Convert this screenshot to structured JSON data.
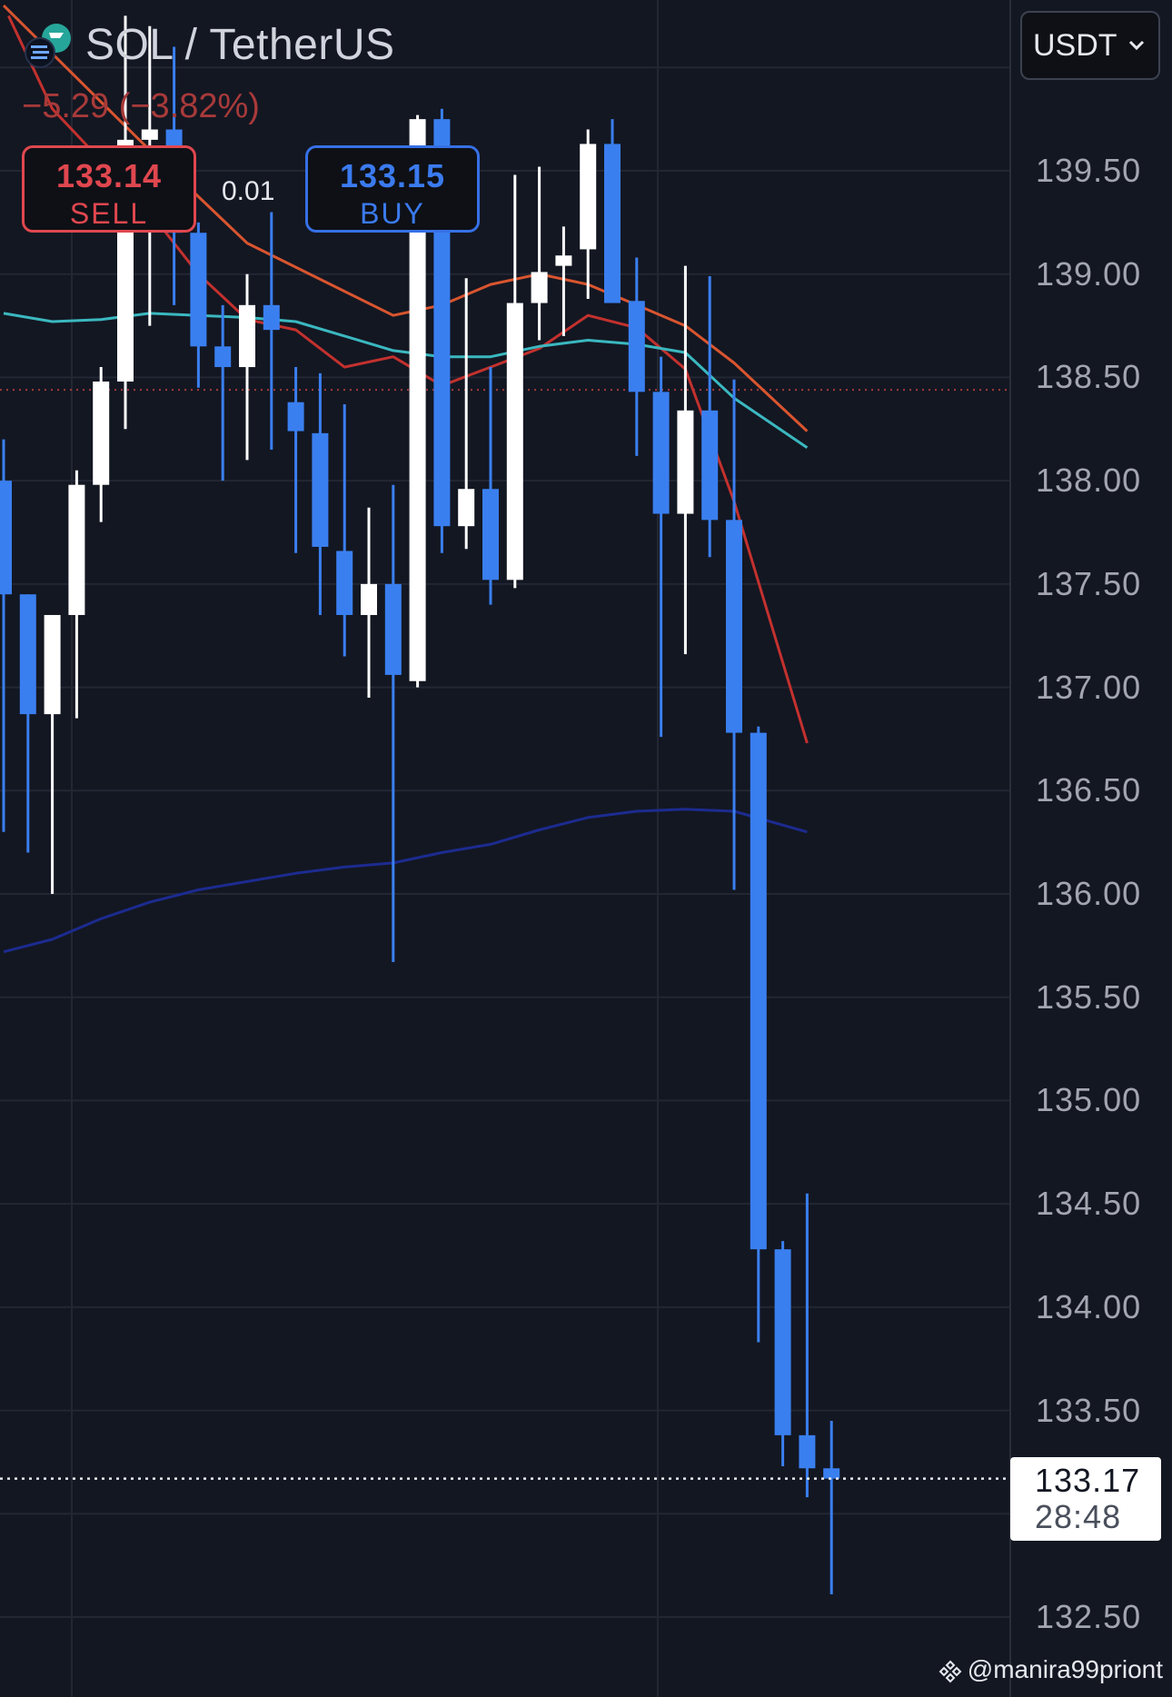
{
  "header": {
    "title": "SOL / TetherUS",
    "change": "−5.29 (−3.82%)"
  },
  "trade": {
    "sell_price": "133.14",
    "sell_label": "SELL",
    "buy_price": "133.15",
    "buy_label": "BUY",
    "spread": "0.01"
  },
  "currency_select": {
    "value": "USDT"
  },
  "last_price": {
    "value": "133.17",
    "countdown": "28:48"
  },
  "watermark": "@manira99priont",
  "colors": {
    "background": "#131722",
    "grid": "#232733",
    "up_candle": "#ffffff",
    "down_candle": "#3a7ff0",
    "ma_red": "#c3312e",
    "ma_orange": "#d9552f",
    "ma_teal": "#3bb8c0",
    "ma_navy": "#1c2b8f"
  },
  "chart_data": {
    "type": "candlestick",
    "title": "SOL / TetherUS",
    "ylim": [
      132.25,
      140.25
    ],
    "y_ticks": [
      "139.50",
      "139.00",
      "138.50",
      "138.00",
      "137.50",
      "137.00",
      "136.50",
      "136.00",
      "135.50",
      "135.00",
      "134.50",
      "134.00",
      "133.50",
      "132.50"
    ],
    "grid": true,
    "last_price": 133.17,
    "candles": [
      {
        "o": 138.0,
        "h": 138.2,
        "l": 136.3,
        "c": 137.45
      },
      {
        "o": 137.45,
        "h": 137.45,
        "l": 136.2,
        "c": 136.87
      },
      {
        "o": 136.87,
        "h": 137.35,
        "l": 136.0,
        "c": 137.35
      },
      {
        "o": 137.35,
        "h": 138.05,
        "l": 136.85,
        "c": 137.98
      },
      {
        "o": 137.98,
        "h": 138.55,
        "l": 137.8,
        "c": 138.48
      },
      {
        "o": 138.48,
        "h": 140.25,
        "l": 138.25,
        "c": 139.65
      },
      {
        "o": 139.65,
        "h": 140.2,
        "l": 138.75,
        "c": 139.7
      },
      {
        "o": 139.7,
        "h": 140.1,
        "l": 138.85,
        "c": 139.2
      },
      {
        "o": 139.2,
        "h": 139.25,
        "l": 138.45,
        "c": 138.65
      },
      {
        "o": 138.65,
        "h": 138.85,
        "l": 138.0,
        "c": 138.55
      },
      {
        "o": 138.55,
        "h": 139.0,
        "l": 138.1,
        "c": 138.85
      },
      {
        "o": 138.85,
        "h": 139.3,
        "l": 138.15,
        "c": 138.73
      },
      {
        "o": 138.38,
        "h": 138.55,
        "l": 137.65,
        "c": 138.24
      },
      {
        "o": 138.23,
        "h": 138.52,
        "l": 137.35,
        "c": 137.68
      },
      {
        "o": 137.66,
        "h": 138.37,
        "l": 137.15,
        "c": 137.35
      },
      {
        "o": 137.35,
        "h": 137.87,
        "l": 136.95,
        "c": 137.5
      },
      {
        "o": 137.5,
        "h": 137.98,
        "l": 135.67,
        "c": 137.06
      },
      {
        "o": 137.03,
        "h": 139.77,
        "l": 137.0,
        "c": 139.75
      },
      {
        "o": 139.75,
        "h": 139.8,
        "l": 137.65,
        "c": 137.78
      },
      {
        "o": 137.78,
        "h": 138.98,
        "l": 137.67,
        "c": 137.96
      },
      {
        "o": 137.96,
        "h": 138.55,
        "l": 137.4,
        "c": 137.52
      },
      {
        "o": 137.52,
        "h": 139.48,
        "l": 137.48,
        "c": 138.86
      },
      {
        "o": 138.86,
        "h": 139.52,
        "l": 138.68,
        "c": 139.01
      },
      {
        "o": 139.04,
        "h": 139.23,
        "l": 138.7,
        "c": 139.09
      },
      {
        "o": 139.12,
        "h": 139.7,
        "l": 138.88,
        "c": 139.63
      },
      {
        "o": 139.63,
        "h": 139.75,
        "l": 138.93,
        "c": 138.86
      },
      {
        "o": 138.87,
        "h": 139.08,
        "l": 138.12,
        "c": 138.43
      },
      {
        "o": 138.43,
        "h": 138.6,
        "l": 136.76,
        "c": 137.84
      },
      {
        "o": 137.84,
        "h": 139.04,
        "l": 137.16,
        "c": 138.34
      },
      {
        "o": 138.34,
        "h": 138.99,
        "l": 137.63,
        "c": 137.81
      },
      {
        "o": 137.81,
        "h": 138.49,
        "l": 136.02,
        "c": 136.78
      },
      {
        "o": 136.78,
        "h": 136.81,
        "l": 133.83,
        "c": 134.28
      },
      {
        "o": 134.28,
        "h": 134.32,
        "l": 133.23,
        "c": 133.38
      },
      {
        "o": 133.38,
        "h": 134.55,
        "l": 133.08,
        "c": 133.22
      },
      {
        "o": 133.22,
        "h": 133.45,
        "l": 132.61,
        "c": 133.17
      }
    ],
    "moving_averages": [
      {
        "color": "#d9552f",
        "points": [
          [
            0,
            140.3
          ],
          [
            6,
            139.6
          ],
          [
            10,
            139.15
          ],
          [
            16,
            138.8
          ],
          [
            18,
            138.85
          ],
          [
            20,
            138.95
          ],
          [
            22,
            139.0
          ],
          [
            24,
            138.95
          ],
          [
            26,
            138.85
          ],
          [
            28,
            138.75
          ],
          [
            30,
            138.57
          ],
          [
            33,
            138.24
          ]
        ]
      },
      {
        "color": "#c3312e",
        "points": [
          [
            0.2,
            140.25
          ],
          [
            2,
            139.8
          ],
          [
            4,
            139.55
          ],
          [
            6,
            139.3
          ],
          [
            8,
            139.0
          ],
          [
            10,
            138.78
          ],
          [
            12,
            138.73
          ],
          [
            14,
            138.55
          ],
          [
            16,
            138.6
          ],
          [
            18,
            138.46
          ],
          [
            20,
            138.55
          ],
          [
            22,
            138.64
          ],
          [
            24,
            138.8
          ],
          [
            26,
            138.74
          ],
          [
            28,
            138.54
          ],
          [
            30,
            137.9
          ],
          [
            33,
            136.73
          ]
        ]
      },
      {
        "color": "#3bb8c0",
        "points": [
          [
            0,
            138.81
          ],
          [
            2,
            138.77
          ],
          [
            4,
            138.78
          ],
          [
            6,
            138.81
          ],
          [
            8,
            138.8
          ],
          [
            10,
            138.79
          ],
          [
            12,
            138.77
          ],
          [
            14,
            138.7
          ],
          [
            16,
            138.63
          ],
          [
            18,
            138.6
          ],
          [
            20,
            138.6
          ],
          [
            22,
            138.65
          ],
          [
            24,
            138.68
          ],
          [
            26,
            138.66
          ],
          [
            28,
            138.62
          ],
          [
            30,
            138.4
          ],
          [
            33,
            138.16
          ]
        ]
      },
      {
        "color": "#1c2b8f",
        "points": [
          [
            0,
            135.72
          ],
          [
            2,
            135.78
          ],
          [
            4,
            135.88
          ],
          [
            6,
            135.96
          ],
          [
            8,
            136.02
          ],
          [
            10,
            136.06
          ],
          [
            12,
            136.1
          ],
          [
            14,
            136.13
          ],
          [
            16,
            136.15
          ],
          [
            18,
            136.2
          ],
          [
            20,
            136.24
          ],
          [
            22,
            136.31
          ],
          [
            24,
            136.37
          ],
          [
            26,
            136.4
          ],
          [
            28,
            136.41
          ],
          [
            30,
            136.4
          ],
          [
            33,
            136.3
          ]
        ]
      }
    ]
  }
}
